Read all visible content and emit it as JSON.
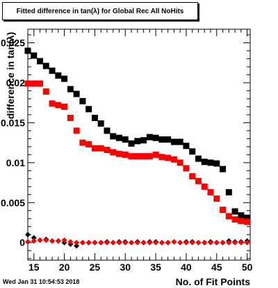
{
  "chart_data": {
    "type": "scatter",
    "title": "Fitted difference in tan(λ) for Global Rec All NoHits",
    "xlabel": "No. of Fit Points",
    "ylabel": "difference in tan(λ)",
    "xlim": [
      14,
      50.5
    ],
    "ylim": [
      -0.0022,
      0.0267
    ],
    "x_ticks": [
      15,
      20,
      25,
      30,
      35,
      40,
      45,
      50
    ],
    "y_ticks": [
      0,
      0.005,
      0.01,
      0.015,
      0.02,
      0.025
    ],
    "y_tick_labels": [
      "0",
      "0.005",
      "0.01",
      "0.015",
      "0.02",
      "0.025"
    ],
    "grid": false,
    "series": [
      {
        "color": "#000000",
        "marker": "square",
        "x": [
          14,
          15,
          16,
          17,
          18,
          19,
          20,
          21,
          22,
          23,
          24,
          25,
          26,
          27,
          28,
          29,
          30,
          31,
          32,
          33,
          34,
          35,
          36,
          37,
          38,
          39,
          40,
          41,
          42,
          43,
          44,
          45,
          46,
          47,
          48,
          49,
          50
        ],
        "y": [
          0.024,
          0.0234,
          0.0227,
          0.0221,
          0.0215,
          0.0209,
          0.0205,
          0.0192,
          0.0186,
          0.0177,
          0.0167,
          0.0156,
          0.0149,
          0.014,
          0.0133,
          0.0131,
          0.0129,
          0.0124,
          0.0127,
          0.0128,
          0.0132,
          0.0131,
          0.0129,
          0.0129,
          0.0126,
          0.0126,
          0.0121,
          0.0114,
          0.0105,
          0.0101,
          0.01,
          0.0099,
          0.0092,
          0.0063,
          0.0039,
          0.0034,
          0.0031
        ]
      },
      {
        "color": "#ff0000",
        "marker": "square",
        "x": [
          14,
          15,
          16,
          17,
          18,
          19,
          20,
          21,
          22,
          23,
          24,
          25,
          26,
          27,
          28,
          29,
          30,
          31,
          32,
          33,
          34,
          35,
          36,
          37,
          38,
          39,
          40,
          41,
          42,
          43,
          44,
          45,
          46,
          47,
          48,
          49,
          50
        ],
        "y": [
          0.0199,
          0.0199,
          0.0199,
          0.0189,
          0.0174,
          0.0172,
          0.017,
          0.0156,
          0.014,
          0.0125,
          0.0123,
          0.0118,
          0.0118,
          0.0116,
          0.0113,
          0.0111,
          0.011,
          0.0108,
          0.0108,
          0.0108,
          0.0108,
          0.011,
          0.0107,
          0.0106,
          0.0104,
          0.01,
          0.0093,
          0.0083,
          0.0077,
          0.007,
          0.0063,
          0.0055,
          0.0041,
          0.0033,
          0.0029,
          0.0027,
          0.0026
        ]
      },
      {
        "color": "#000000",
        "marker": "diamond",
        "x": [
          14,
          15,
          16,
          17,
          18,
          19,
          20,
          21,
          22,
          23,
          24,
          25,
          26,
          27,
          28,
          29,
          30,
          31,
          32,
          33,
          34,
          35,
          36,
          37,
          38,
          39,
          40,
          41,
          42,
          43,
          44,
          45,
          46,
          47,
          48,
          49,
          50
        ],
        "y": [
          0.001,
          0.0006,
          0.0003,
          0.0004,
          0.0002,
          0.0002,
          0.0,
          -0.0002,
          -0.0004,
          0.0,
          0.0,
          0.0,
          0.0,
          0.0001,
          0.0,
          0.0001,
          0.0001,
          0.0,
          0.0001,
          0.0,
          0.0001,
          0.0001,
          0.0,
          0.0,
          0.0001,
          0.0,
          0.0001,
          0.0001,
          0.0,
          0.0,
          0.0001,
          0.0,
          0.0,
          0.0002,
          0.0001,
          0.0001,
          0.0002
        ]
      },
      {
        "color": "#ff0000",
        "marker": "diamond",
        "x": [
          14,
          15,
          16,
          17,
          18,
          19,
          20,
          21,
          22,
          23,
          24,
          25,
          26,
          27,
          28,
          29,
          30,
          31,
          32,
          33,
          34,
          35,
          36,
          37,
          38,
          39,
          40,
          41,
          42,
          43,
          44,
          45,
          46,
          47,
          48,
          49,
          50
        ],
        "y": [
          0.0001,
          0.0002,
          0.0003,
          0.0003,
          0.0002,
          0.0002,
          0.0003,
          0.0001,
          0.0,
          0.0,
          0.0,
          0.0,
          0.0,
          0.0,
          0.0,
          0.0,
          0.0,
          0.0,
          0.0,
          0.0,
          0.0,
          0.0,
          0.0,
          0.0,
          0.0001,
          0.0,
          0.0,
          0.0,
          0.0,
          0.0,
          0.0,
          0.0,
          0.0,
          0.0,
          0.0,
          0.0,
          0.0
        ]
      }
    ]
  },
  "footer": {
    "timestamp": "Wed Jan 31 10:54:53 2018"
  }
}
